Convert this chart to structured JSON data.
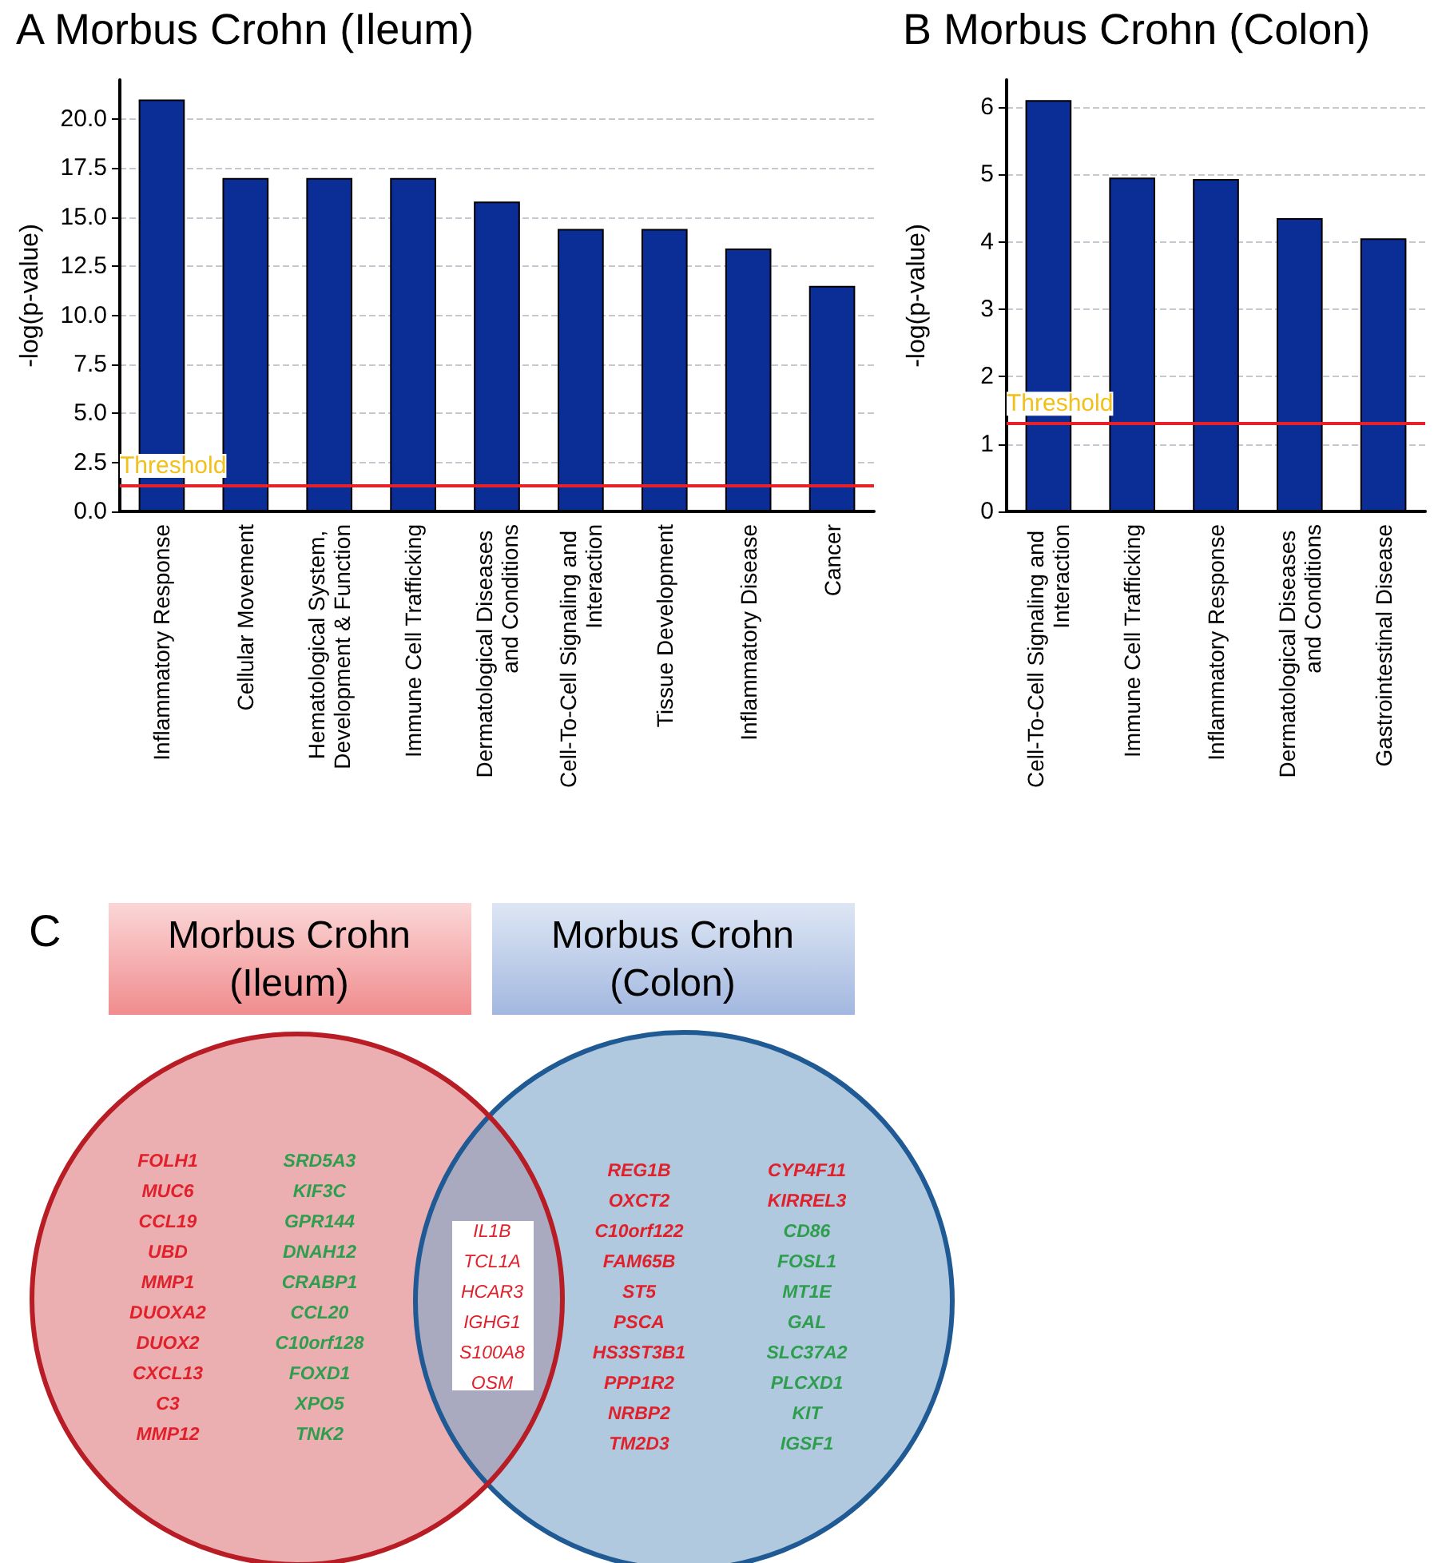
{
  "chart_data": [
    {
      "type": "bar",
      "title": "A Morbus Crohn (Ileum)",
      "ylabel": "-log(p-value)",
      "categories": [
        "Inflammatory Response",
        "Cellular Movement",
        "Hematological System, Development & Function",
        "Immune Cell Trafficking",
        "Dermatological Diseases and Conditions",
        "Cell-To-Cell Signaling and Interaction",
        "Tissue Development",
        "Inflammatory Disease",
        "Cancer"
      ],
      "values": [
        21.0,
        17.0,
        17.0,
        17.0,
        15.8,
        14.4,
        14.4,
        13.4,
        11.5
      ],
      "color": "#0a2d96",
      "ylim": [
        0,
        22
      ],
      "yticks": [
        {
          "value": 0,
          "label": "0.0"
        },
        2.5,
        {
          "value": 5,
          "label": "5.0"
        },
        7.5,
        {
          "value": 10,
          "label": "10.0"
        },
        12.5,
        {
          "value": 15,
          "label": "15.0"
        },
        17.5,
        {
          "value": 20,
          "label": "20.0"
        }
      ],
      "grid": "y",
      "ref_lines": [
        {
          "axis": "y",
          "value": 1.3,
          "label": "Threshold",
          "color": "#e8202a"
        }
      ]
    },
    {
      "type": "bar",
      "title": "B Morbus Crohn (Colon)",
      "ylabel": "-log(p-value)",
      "categories": [
        "Cell-To-Cell Signaling and Interaction",
        "Immune Cell Trafficking",
        "Inflammatory Response",
        "Dermatological Diseases and Conditions",
        "Gastrointestinal Disease"
      ],
      "values": [
        6.1,
        4.95,
        4.93,
        4.35,
        4.05
      ],
      "color": "#0a2d96",
      "ylim": [
        0,
        6.4
      ],
      "yticks": [
        0,
        1,
        2,
        3,
        4,
        5,
        6
      ],
      "grid": "y",
      "ref_lines": [
        {
          "axis": "y",
          "value": 1.3,
          "label": "Threshold",
          "color": "#e8202a"
        }
      ]
    },
    {
      "type": "other",
      "title": "C",
      "categories": [
        "Morbus Crohn\n(Ileum)",
        "Morbus Crohn\n(Colon)"
      ],
      "annotations": [
        "FOLH1\nMUC6\nCCL19\nUBD\nMMP1\nDUOXA2\nDUOX2\nCXCL13\nC3\nMMP12",
        "SRD5A3\nKIF3C\nGPR144\nDNAH12\nCRABP1\nCCL20\nC10orf128\nFOXD1\nXPO5\nTNK2",
        "IL1B\nTCL1A\nHCAR3\nIGHG1\nS100A8\nOSM",
        "REG1B\nOXCT2\nC10orf122\nFAM65B\nST5\nPSCA\nHS3ST3B1\nPPP1R2\nNRBP2\nTM2D3",
        "CYP4F11\nKIRREL3",
        "CD86\nFOSL1\nMT1E\nGAL\nSLC37A2\nPLCXD1\nKIT\nIGSF1"
      ]
    }
  ]
}
